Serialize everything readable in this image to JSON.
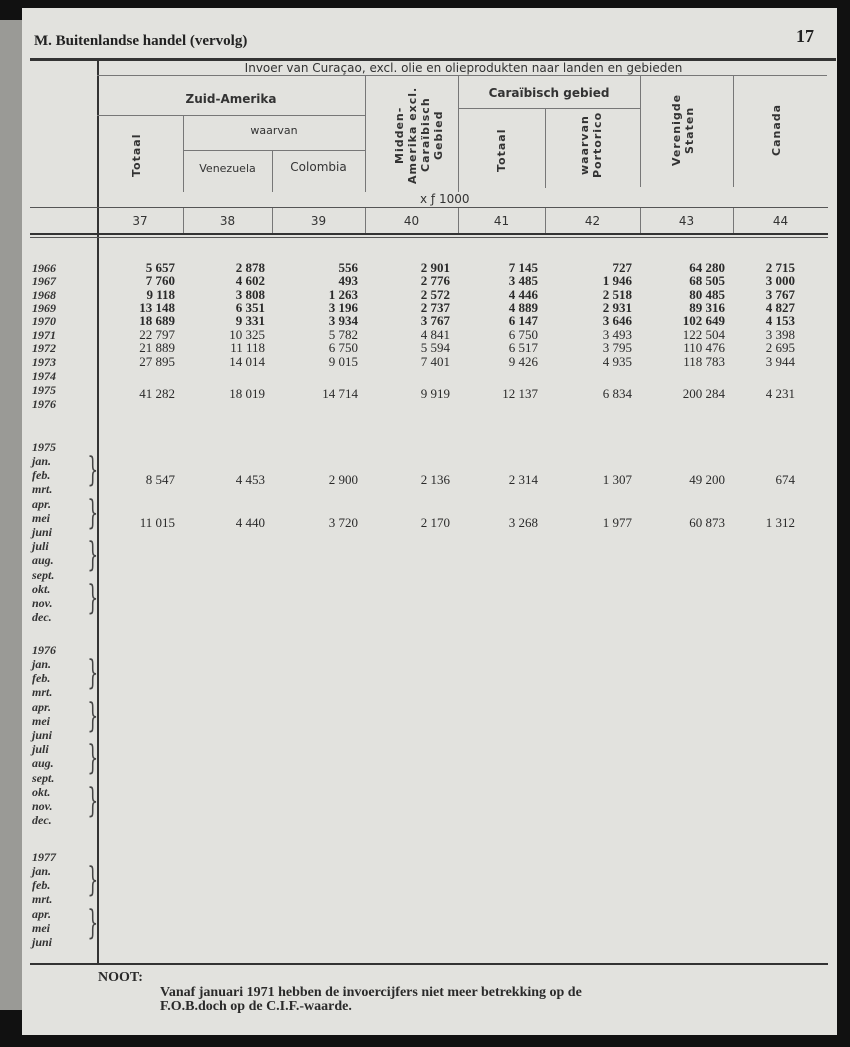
{
  "page": {
    "section_title": "M.  Buitenlandse handel (vervolg)",
    "page_number": "17"
  },
  "table": {
    "title": "Invoer van Curaçao, excl. olie en olieprodukten naar landen en gebieden",
    "groups": {
      "zuid_amerika": "Zuid-Amerika",
      "waarvan": "waarvan",
      "caraibisch": "Caraïbisch gebied"
    },
    "columns": [
      {
        "label": "Totaal",
        "number": "37"
      },
      {
        "label": "Venezuela",
        "number": "38"
      },
      {
        "label": "Colombia",
        "number": "39"
      },
      {
        "label": "Midden-Amerika excl. Caraïbisch Gebied",
        "number": "40"
      },
      {
        "label": "Totaal",
        "number": "41"
      },
      {
        "label": "waarvan Portorico",
        "number": "42"
      },
      {
        "label": "Verenigde Staten",
        "number": "43"
      },
      {
        "label": "Canada",
        "number": "44"
      }
    ],
    "unit": "x ƒ 1000",
    "annual_rows": [
      {
        "year": "1966",
        "values": [
          "5 657",
          "2 878",
          "556",
          "2 901",
          "7 145",
          "727",
          "64 280",
          "2 715"
        ]
      },
      {
        "year": "1967",
        "values": [
          "7 760",
          "4 602",
          "493",
          "2 776",
          "3 485",
          "1 946",
          "68 505",
          "3 000"
        ]
      },
      {
        "year": "1968",
        "values": [
          "9 118",
          "3 808",
          "1 263",
          "2 572",
          "4 446",
          "2 518",
          "80 485",
          "3 767"
        ]
      },
      {
        "year": "1969",
        "values": [
          "13 148",
          "6 351",
          "3 196",
          "2 737",
          "4 889",
          "2 931",
          "89 316",
          "4 827"
        ]
      },
      {
        "year": "1970",
        "values": [
          "18 689",
          "9 331",
          "3 934",
          "3 767",
          "6 147",
          "3 646",
          "102 649",
          "4 153"
        ]
      },
      {
        "year": "1971",
        "values": [
          "22 797",
          "10 325",
          "5 782",
          "4 841",
          "6 750",
          "3 493",
          "122 504",
          "3 398"
        ]
      },
      {
        "year": "1972",
        "values": [
          "21 889",
          "11 118",
          "6 750",
          "5 594",
          "6 517",
          "3 795",
          "110 476",
          "2 695"
        ]
      },
      {
        "year": "1973",
        "values": [
          "27 895",
          "14 014",
          "9 015",
          "7 401",
          "9 426",
          "4 935",
          "118 783",
          "3 944"
        ]
      },
      {
        "year": "1974",
        "values": []
      },
      {
        "year": "1975",
        "values": [
          "41 282",
          "18 019",
          "14 714",
          "9 919",
          "12 137",
          "6 834",
          "200 284",
          "4 231"
        ]
      },
      {
        "year": "1976",
        "values": []
      }
    ],
    "monthly_blocks": [
      {
        "year": "1975",
        "months": [
          "jan.",
          "feb.",
          "mrt.",
          "apr.",
          "mei",
          "juni",
          "juli",
          "aug.",
          "sept.",
          "okt.",
          "nov.",
          "dec."
        ],
        "quarters": [
          {
            "values": [
              "8 547",
              "4 453",
              "2 900",
              "2 136",
              "2 314",
              "1 307",
              "49 200",
              "674"
            ]
          },
          {
            "values": [
              "11 015",
              "4 440",
              "3 720",
              "2 170",
              "3 268",
              "1 977",
              "60 873",
              "1 312"
            ]
          },
          {
            "values": []
          },
          {
            "values": []
          }
        ]
      },
      {
        "year": "1976",
        "months": [
          "jan.",
          "feb.",
          "mrt.",
          "apr.",
          "mei",
          "juni",
          "juli",
          "aug.",
          "sept.",
          "okt.",
          "nov.",
          "dec."
        ],
        "quarters": [
          {
            "values": []
          },
          {
            "values": []
          },
          {
            "values": []
          },
          {
            "values": []
          }
        ]
      },
      {
        "year": "1977",
        "months": [
          "jan.",
          "feb.",
          "mrt.",
          "apr.",
          "mei",
          "juni"
        ],
        "quarters": [
          {
            "values": []
          },
          {
            "values": []
          }
        ]
      }
    ]
  },
  "note": {
    "label": "NOOT:",
    "line1": "Vanaf januari 1971 hebben de invoercijfers niet meer betrekking op de",
    "line2": "F.O.B.doch op de C.I.F.-waarde."
  }
}
